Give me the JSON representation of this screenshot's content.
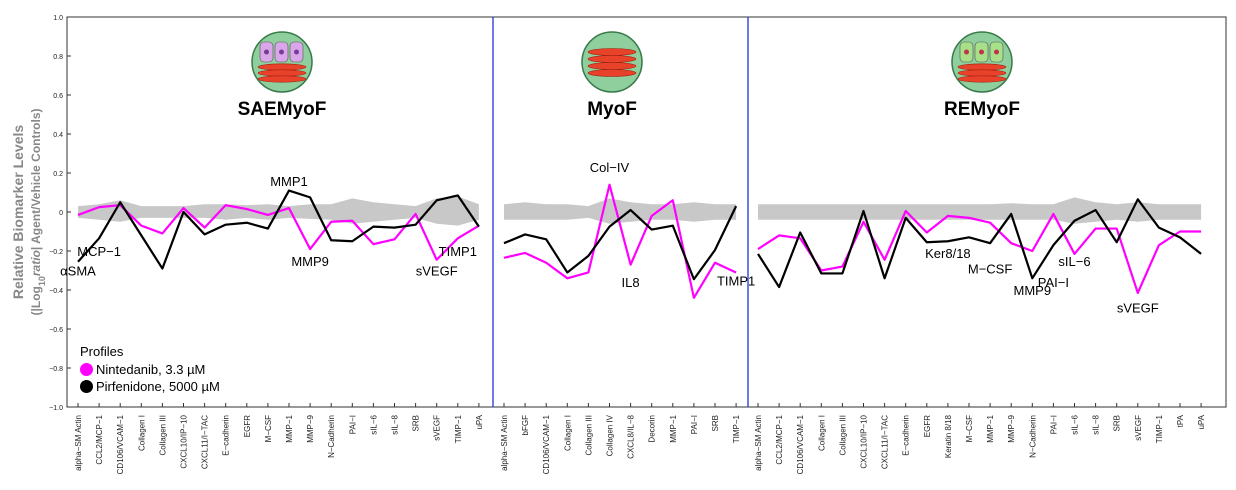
{
  "chart_data": {
    "type": "line",
    "ylabel_main": "Relative Biomarker Levels",
    "ylabel_sub_prefix": "(|Log",
    "ylabel_sub_base": "10",
    "ylabel_sub_ratio": "ratio",
    "ylabel_sub_suffix": "| Agent/Vehicle Controls)",
    "ylim": [
      -1.0,
      1.0
    ],
    "yticks": [
      "1.0",
      "0.8",
      "0.6",
      "0.4",
      "0.2",
      "0",
      "−0.2",
      "−0.4",
      "−0.6",
      "−0.8",
      "−1.0"
    ],
    "panels": [
      {
        "name": "SAEMyoF",
        "categories": [
          "alpha−SM Actin",
          "CCL2/MCP−1",
          "CD106/VCAM−1",
          "Collagen I",
          "Collagen III",
          "CXCL10/IP−10",
          "CXCL11/I−TAC",
          "E−cadherin",
          "EGFR",
          "M−CSF",
          "MMP−1",
          "MMP−9",
          "N−Cadherin",
          "PAI−I",
          "sIL−6",
          "sIL−8",
          "SRB",
          "sVEGF",
          "TIMP−1",
          "uPA"
        ],
        "series": [
          {
            "name": "Nintedanib, 3.3 µM",
            "color": "#ff00ff",
            "values": [
              -0.015,
              0.025,
              0.035,
              -0.07,
              -0.11,
              0.02,
              -0.08,
              0.035,
              0.015,
              -0.015,
              0.02,
              -0.19,
              -0.05,
              -0.045,
              -0.165,
              -0.14,
              -0.01,
              -0.245,
              -0.135,
              -0.07
            ]
          },
          {
            "name": "Pirfenidone, 5000 µM",
            "color": "#000000",
            "values": [
              -0.255,
              -0.135,
              0.05,
              -0.12,
              -0.29,
              0.0,
              -0.115,
              -0.065,
              -0.055,
              -0.085,
              0.11,
              0.075,
              -0.145,
              -0.15,
              -0.075,
              -0.08,
              -0.065,
              0.06,
              0.085,
              -0.075
            ]
          }
        ],
        "band_upper": [
          0.03,
          0.04,
          0.06,
          0.03,
          0.03,
          0.03,
          0.04,
          0.04,
          0.035,
          0.04,
          0.03,
          0.04,
          0.04,
          0.07,
          0.05,
          0.04,
          0.03,
          0.07,
          0.08,
          0.04
        ],
        "band_lower": [
          -0.03,
          -0.04,
          -0.05,
          -0.03,
          -0.03,
          -0.03,
          -0.03,
          -0.04,
          -0.03,
          -0.04,
          -0.03,
          -0.035,
          -0.04,
          -0.06,
          -0.05,
          -0.04,
          -0.03,
          -0.06,
          -0.07,
          -0.04
        ],
        "annotations": [
          {
            "text": "αSMA",
            "index": 0,
            "value": -0.3
          },
          {
            "text": "MCP−1",
            "index": 1,
            "value": -0.2
          },
          {
            "text": "MMP1",
            "index": 10,
            "value": 0.16
          },
          {
            "text": "MMP9",
            "index": 11,
            "value": -0.25
          },
          {
            "text": "sVEGF",
            "index": 17,
            "value": -0.3
          },
          {
            "text": "TIMP1",
            "index": 18,
            "value": -0.2
          }
        ]
      },
      {
        "name": "MyoF",
        "categories": [
          "alpha−SM Actin",
          "bFGF",
          "CD106/VCAM−1",
          "Collagen I",
          "Collagen III",
          "Collagen IV",
          "CXCL8/IL−8",
          "Decorin",
          "MMP−1",
          "PAI−I",
          "SRB",
          "TIMP−1"
        ],
        "series": [
          {
            "name": "Nintedanib, 3.3 µM",
            "color": "#ff00ff",
            "values": [
              -0.235,
              -0.21,
              -0.26,
              -0.34,
              -0.31,
              0.14,
              -0.27,
              -0.02,
              0.06,
              -0.44,
              -0.26,
              -0.31
            ]
          },
          {
            "name": "Pirfenidone, 5000 µM",
            "color": "#000000",
            "values": [
              -0.16,
              -0.115,
              -0.14,
              -0.31,
              -0.225,
              -0.075,
              0.01,
              -0.09,
              -0.07,
              -0.345,
              -0.195,
              0.03
            ]
          }
        ],
        "band_upper": [
          0.04,
          0.05,
          0.04,
          0.04,
          0.03,
          0.07,
          0.05,
          0.04,
          0.04,
          0.05,
          0.04,
          0.04
        ],
        "band_lower": [
          -0.04,
          -0.04,
          -0.04,
          -0.04,
          -0.03,
          -0.06,
          -0.05,
          -0.04,
          -0.04,
          -0.05,
          -0.04,
          -0.04
        ],
        "annotations": [
          {
            "text": "Col−IV",
            "index": 5,
            "value": 0.23
          },
          {
            "text": "IL8",
            "index": 6,
            "value": -0.36
          },
          {
            "text": "TIMP1",
            "index": 11,
            "value": -0.35
          }
        ]
      },
      {
        "name": "REMyoF",
        "categories": [
          "alpha−SM Actin",
          "CCL2/MCP−1",
          "CD106/VCAM−1",
          "Collagen I",
          "Collagen III",
          "CXCL10/IP−10",
          "CXCL11/I−TAC",
          "E−cadherin",
          "EGFR",
          "Keratin 8/18",
          "M−CSF",
          "MMP−1",
          "MMP−9",
          "N−Cadherin",
          "PAI−I",
          "sIL−6",
          "sIL−8",
          "SRB",
          "sVEGF",
          "TIMP−1",
          "tPA",
          "uPA"
        ],
        "series": [
          {
            "name": "Nintedanib, 3.3 µM",
            "color": "#ff00ff",
            "values": [
              -0.19,
              -0.12,
              -0.135,
              -0.3,
              -0.28,
              -0.05,
              -0.245,
              0.005,
              -0.105,
              -0.02,
              -0.03,
              -0.055,
              -0.16,
              -0.2,
              -0.01,
              -0.215,
              -0.085,
              -0.085,
              -0.415,
              -0.17,
              -0.1,
              -0.1
            ]
          },
          {
            "name": "Pirfenidone, 5000 µM",
            "color": "#000000",
            "values": [
              -0.215,
              -0.385,
              -0.105,
              -0.315,
              -0.315,
              0.005,
              -0.34,
              -0.03,
              -0.155,
              -0.15,
              -0.13,
              -0.16,
              -0.01,
              -0.34,
              -0.17,
              -0.045,
              0.01,
              -0.155,
              0.065,
              -0.08,
              -0.13,
              -0.215
            ]
          }
        ],
        "band_upper": [
          0.04,
          0.04,
          0.04,
          0.04,
          0.04,
          0.04,
          0.04,
          0.04,
          0.04,
          0.04,
          0.04,
          0.04,
          0.045,
          0.04,
          0.04,
          0.075,
          0.05,
          0.04,
          0.05,
          0.04,
          0.04,
          0.04
        ],
        "band_lower": [
          -0.04,
          -0.04,
          -0.04,
          -0.04,
          -0.04,
          -0.04,
          -0.04,
          -0.04,
          -0.04,
          -0.04,
          -0.04,
          -0.04,
          -0.04,
          -0.04,
          -0.04,
          -0.06,
          -0.05,
          -0.04,
          -0.05,
          -0.04,
          -0.04,
          -0.04
        ],
        "annotations": [
          {
            "text": "Ker8/18",
            "index": 9,
            "value": -0.21
          },
          {
            "text": "M−CSF",
            "index": 11,
            "value": -0.29
          },
          {
            "text": "MMP9",
            "index": 13,
            "value": -0.4
          },
          {
            "text": "PAI−I",
            "index": 14,
            "value": -0.36
          },
          {
            "text": "sIL−6",
            "index": 15,
            "value": -0.25
          },
          {
            "text": "sVEGF",
            "index": 18,
            "value": -0.49
          }
        ]
      }
    ],
    "colors": {
      "band": "#c8c8c8",
      "divider": "#2233dd",
      "nintedanib": "#ff00ff",
      "pirfenidone": "#000000"
    },
    "grid": false,
    "legend_position": "bottom-left"
  },
  "legend": {
    "title": "Profiles",
    "items": [
      {
        "label": "Nintedanib, 3.3 µM",
        "color": "#ff00ff"
      },
      {
        "label": "Pirfenidone, 5000 µM",
        "color": "#000000"
      }
    ]
  }
}
